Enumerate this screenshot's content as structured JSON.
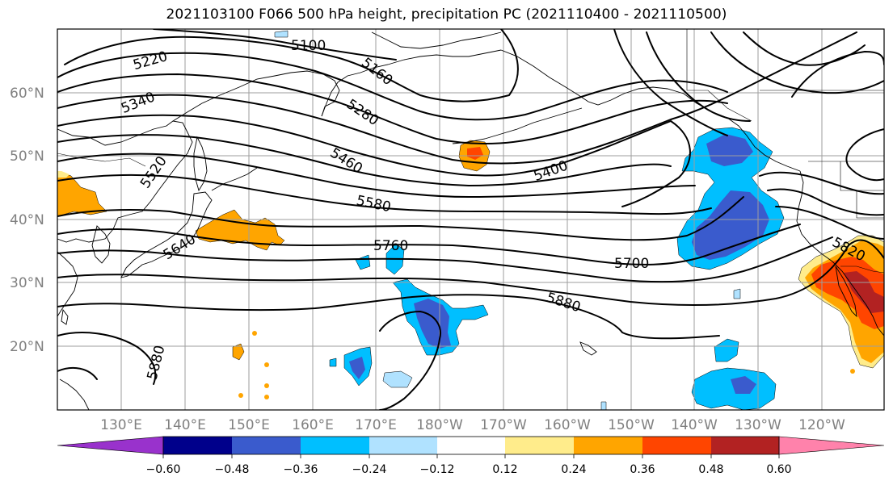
{
  "title": "2021103100 F066 500 hPa height, precipitation PC (2021110400 - 2021110500)",
  "latitude_labels": [
    "60°N",
    "50°N",
    "40°N",
    "30°N",
    "20°N"
  ],
  "longitude_labels": [
    "130°E",
    "140°E",
    "150°E",
    "160°E",
    "170°E",
    "180°W",
    "170°W",
    "160°W",
    "150°W",
    "140°W",
    "130°W",
    "120°W"
  ],
  "contour_labels": [
    "5100",
    "5160",
    "5220",
    "5280",
    "5340",
    "5400",
    "5460",
    "5520",
    "5580",
    "5640",
    "5700",
    "5760",
    "5820",
    "5880",
    "5880"
  ],
  "colorbar": {
    "tick_labels": [
      "−0.60",
      "−0.48",
      "−0.36",
      "−0.24",
      "−0.12",
      "0.12",
      "0.24",
      "0.36",
      "0.48",
      "0.60"
    ],
    "colors": [
      "#9932cc",
      "#00008b",
      "#3a5bcd",
      "#00bfff",
      "#b0e2ff",
      "#ffffff",
      "#ffec8b",
      "#ffa500",
      "#ff4500",
      "#b22222",
      "#ff82ab"
    ]
  },
  "colors": {
    "neg_strong": "#3a5bcd",
    "neg_mid": "#00bfff",
    "neg_light": "#b0e2ff",
    "pos_light": "#ffec8b",
    "pos_mid": "#ffa500",
    "pos_strong": "#ff4500",
    "pos_darker": "#b22222"
  }
}
